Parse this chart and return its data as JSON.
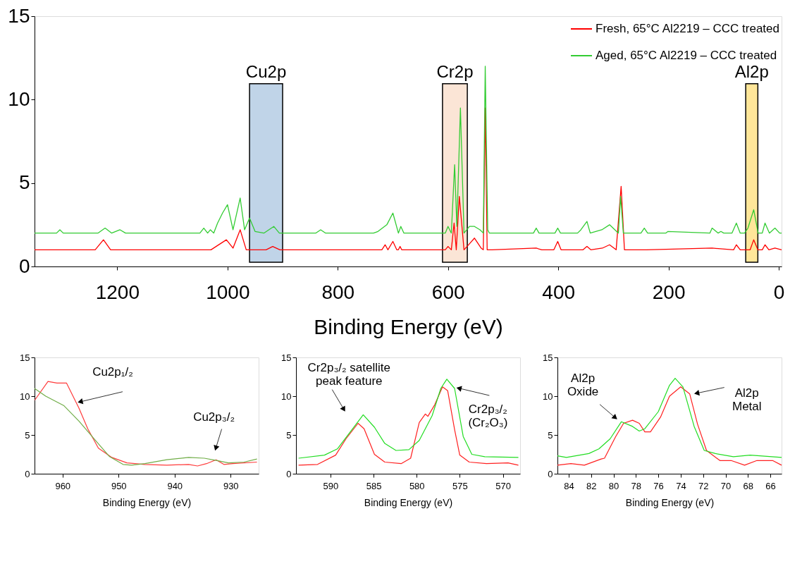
{
  "chart_data": [
    {
      "type": "line",
      "xlabel": "Binding Energy (eV)",
      "xlim": [
        1350,
        -5
      ],
      "xticks": [
        1200,
        1000,
        800,
        600,
        400,
        200,
        0
      ],
      "ylim": [
        0,
        15
      ],
      "yticks": [
        0,
        5,
        10,
        15
      ],
      "legend": "top right",
      "bands": [
        {
          "axis": "x",
          "from": 960,
          "to": 900,
          "label": "Cu2p",
          "color": "#c0d4e8"
        },
        {
          "axis": "x",
          "from": 610,
          "to": 565,
          "label": "Cr2p",
          "color": "#fbe5d6"
        },
        {
          "axis": "x",
          "from": 60,
          "to": 38,
          "label": "Al2p",
          "color": "#ffe699"
        }
      ],
      "series": [
        {
          "name": "Fresh, 65°C Al2219 – CCC treated",
          "color": "#ff0000",
          "x": [
            1350,
            1240,
            1225,
            1212,
            1030,
            1002,
            990,
            977,
            966,
            930,
            918,
            905,
            720,
            714,
            709,
            700,
            693,
            690,
            687,
            684,
            605,
            600,
            594,
            589,
            585,
            579.5,
            571,
            560,
            552,
            540,
            536,
            532.5,
            529,
            520,
            440,
            430,
            408,
            401,
            395,
            355,
            348,
            341,
            320,
            307,
            295,
            286,
            280,
            240,
            121,
            82,
            77,
            70,
            52,
            45.5,
            38,
            30,
            25,
            18,
            7,
            -5
          ],
          "values": [
            1.0,
            1.0,
            1.6,
            1.0,
            1.0,
            1.6,
            1.1,
            2.2,
            1.0,
            1.0,
            1.2,
            1.0,
            1.0,
            1.3,
            1.0,
            1.5,
            1.0,
            1.0,
            1.2,
            1.0,
            1.0,
            1.2,
            1.0,
            2.6,
            1.0,
            4.2,
            1.0,
            1.4,
            1.7,
            1.1,
            1.0,
            9.5,
            1.0,
            1.0,
            1.1,
            1.0,
            1.0,
            1.5,
            1.0,
            1.0,
            1.2,
            1.0,
            1.1,
            1.3,
            1.0,
            4.8,
            1.0,
            1.0,
            1.1,
            1.0,
            1.3,
            1.0,
            1.0,
            1.6,
            1.0,
            1.0,
            1.3,
            1.0,
            1.1,
            1.0
          ]
        },
        {
          "name": "Aged, 65°C Al2219 – CCC treated",
          "color": "#33cc33",
          "x": [
            1350,
            1310,
            1304,
            1298,
            1235,
            1222,
            1210,
            1195,
            1185,
            1050,
            1043,
            1036,
            1031,
            1025,
            1018,
            1009,
            1000,
            990,
            977,
            969,
            960,
            950,
            934,
            916,
            906,
            840,
            831,
            822,
            735,
            727,
            711,
            700,
            690,
            685.6,
            680,
            605,
            600,
            594,
            588,
            584,
            577.5,
            571,
            561,
            552,
            542,
            536,
            532.5,
            528,
            525,
            445,
            440,
            435,
            406,
            401,
            396,
            365,
            359,
            348,
            342,
            321,
            307,
            291,
            287,
            282,
            278,
            250,
            244,
            238,
            205,
            201,
            125,
            121,
            110,
            105,
            100,
            85,
            77,
            70,
            62,
            56,
            45.5,
            37.5,
            30,
            25,
            17,
            7,
            -1.5,
            -5
          ],
          "values": [
            2.0,
            2.0,
            2.2,
            2.0,
            2.0,
            2.3,
            2.0,
            2.2,
            2.0,
            2.0,
            2.3,
            2.0,
            2.2,
            2.0,
            2.6,
            3.2,
            3.7,
            2.2,
            4.1,
            2.2,
            2.9,
            2.1,
            2.0,
            2.4,
            2.0,
            2.0,
            2.2,
            2.0,
            2.0,
            2.1,
            2.5,
            3.2,
            2.0,
            2.4,
            2.0,
            2.0,
            2.4,
            2.0,
            6.1,
            2.4,
            9.5,
            2.0,
            2.4,
            2.4,
            2.2,
            2.0,
            12.0,
            2.2,
            2.0,
            2.0,
            2.3,
            2.0,
            2.0,
            2.3,
            2.0,
            2.0,
            2.2,
            2.7,
            2.0,
            2.2,
            2.5,
            2.0,
            4.2,
            2.0,
            2.0,
            2.0,
            2.3,
            2.0,
            2.0,
            2.1,
            2.0,
            2.3,
            2.0,
            2.1,
            2.0,
            2.0,
            2.6,
            2.0,
            2.0,
            2.3,
            3.4,
            2.0,
            2.0,
            2.6,
            2.0,
            2.3,
            2.0,
            2.0
          ]
        }
      ]
    },
    {
      "type": "line",
      "xlabel": "Binding Energy (eV)",
      "xlim": [
        965,
        925
      ],
      "xticks": [
        960,
        950,
        940,
        930
      ],
      "ylim": [
        0,
        15
      ],
      "yticks": [
        0,
        5,
        10,
        15
      ],
      "annotations": [
        {
          "text": "Cu2p₁/₂",
          "x": 956.7,
          "y": 9.3
        },
        {
          "text": "Cu2p₃/₂",
          "x": 932.6,
          "y": 3.4
        }
      ],
      "series": [
        {
          "color": "#ff3b3b",
          "x": [
            964.95,
            962.6,
            961,
            959.3,
            957.1,
            955.5,
            953.6,
            951.2,
            948.5,
            945.3,
            941.4,
            937.5,
            935.9,
            934.3,
            932.6,
            931.2,
            929.6,
            925.3
          ],
          "values": [
            9.5,
            11.9,
            11.7,
            11.7,
            8.5,
            5.8,
            3.3,
            2.1,
            1.4,
            1.2,
            1.1,
            1.2,
            1.0,
            1.3,
            1.8,
            1.2,
            1.3,
            1.5
          ]
        },
        {
          "color": "#70ad47",
          "x": [
            965,
            963,
            959.8,
            957.1,
            954,
            951.6,
            949.2,
            947.7,
            945.3,
            941.4,
            937.5,
            934.7,
            932.4,
            930.4,
            927.6,
            925.3
          ],
          "values": [
            11.0,
            10.0,
            8.8,
            6.8,
            4.2,
            2.2,
            1.2,
            1.1,
            1.3,
            1.8,
            2.1,
            2.0,
            1.7,
            1.4,
            1.5,
            1.9
          ]
        }
      ]
    },
    {
      "type": "line",
      "xlabel": "Binding Energy (eV)",
      "xlim": [
        594,
        568
      ],
      "xticks": [
        590,
        585,
        580,
        575,
        570
      ],
      "ylim": [
        0,
        15
      ],
      "yticks": [
        0,
        5,
        10,
        15
      ],
      "annotations": [
        {
          "text": "Cr2p₃/₂ satellite peak feature",
          "x": 588.5,
          "y": 8.4
        },
        {
          "text": "Cr2p₃/₂ (Cr₂O₃)",
          "x": 575.0,
          "y": 11.0
        }
      ],
      "series": [
        {
          "color": "#ff2020",
          "x": [
            593.7,
            591.5,
            589.4,
            588.2,
            586.8,
            586.1,
            584.9,
            583.7,
            581.8,
            580.7,
            579.7,
            579,
            578.7,
            577.9,
            577,
            576.4,
            575.6,
            575,
            573.9,
            571.9,
            569.4,
            568.2
          ],
          "values": [
            1.1,
            1.2,
            2.4,
            4.5,
            6.5,
            5.8,
            2.5,
            1.5,
            1.3,
            2.0,
            6.6,
            7.7,
            7.4,
            8.9,
            11.2,
            10.7,
            5.7,
            2.4,
            1.5,
            1.3,
            1.4,
            1.1
          ]
        },
        {
          "color": "#22dd22",
          "x": [
            593.7,
            590.7,
            589.2,
            587.7,
            586.2,
            584.9,
            583.7,
            582.4,
            580.9,
            579.7,
            578.2,
            577.2,
            576.5,
            575.6,
            574.6,
            573.6,
            572.1,
            568.2
          ],
          "values": [
            2.0,
            2.4,
            3.2,
            5.4,
            7.6,
            6.0,
            3.9,
            3.0,
            3.1,
            4.3,
            7.5,
            11.0,
            12.2,
            11.0,
            4.8,
            2.5,
            2.2,
            2.1
          ]
        }
      ]
    },
    {
      "type": "line",
      "xlabel": "Binding Energy (eV)",
      "xlim": [
        85,
        65
      ],
      "xticks": [
        84,
        82,
        80,
        78,
        76,
        74,
        72,
        70,
        68,
        66
      ],
      "ylim": [
        0,
        15
      ],
      "yticks": [
        0,
        5,
        10,
        15
      ],
      "annotations": [
        {
          "text": "Al2p Oxide",
          "x": 79.9,
          "y": 7.3
        },
        {
          "text": "Al2p Metal",
          "x": 72.5,
          "y": 10.4
        }
      ],
      "series": [
        {
          "color": "#ff2020",
          "x": [
            85,
            83.8,
            82.6,
            81.1,
            80.8,
            79.8,
            79.1,
            78.3,
            77.7,
            77.2,
            76.7,
            75.8,
            75,
            74,
            73.2,
            72.5,
            71.7,
            70.5,
            69.5,
            68.3,
            67.2,
            65.8,
            65
          ],
          "values": [
            1.1,
            1.3,
            1.1,
            1.9,
            2.0,
            4.8,
            6.5,
            6.9,
            6.5,
            5.4,
            5.4,
            7.3,
            10.0,
            11.2,
            10.3,
            6.4,
            3.0,
            1.7,
            1.7,
            1.1,
            1.7,
            1.7,
            1.1
          ]
        },
        {
          "color": "#22dd22",
          "x": [
            85,
            84.2,
            82.2,
            81.3,
            80.3,
            79.3,
            78.3,
            77.7,
            77.2,
            76,
            75,
            74.5,
            73.8,
            72.8,
            71.9,
            70.9,
            69.3,
            67.8,
            65
          ],
          "values": [
            2.3,
            2.1,
            2.6,
            3.2,
            4.5,
            6.7,
            6.1,
            5.5,
            5.8,
            8.0,
            11.4,
            12.3,
            11.2,
            6.1,
            3.0,
            2.6,
            2.2,
            2.4,
            2.1
          ]
        }
      ]
    }
  ]
}
